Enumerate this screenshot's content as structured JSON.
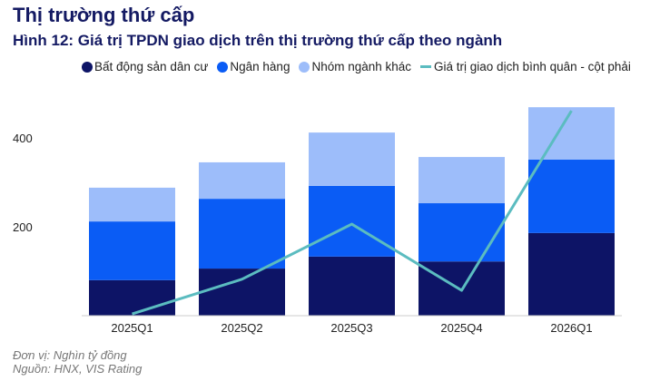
{
  "section_title": "Thị trường thứ cấp",
  "chart_data": {
    "type": "bar",
    "title": "Hình 12: Giá trị TPDN giao dịch trên thị trường thứ cấp theo ngành",
    "categories": [
      "2025Q1",
      "2025Q2",
      "2025Q3",
      "2025Q4",
      "2026Q1"
    ],
    "stacked": true,
    "series": [
      {
        "name": "Bất động sản dân cư",
        "color": "#0d1466",
        "values": [
          80,
          106,
          133,
          122,
          186
        ]
      },
      {
        "name": "Ngân hàng",
        "color": "#0a5cf5",
        "values": [
          132,
          157,
          159,
          131,
          165
        ]
      },
      {
        "name": "Nhóm ngành khác",
        "color": "#9dbdfa",
        "values": [
          76,
          82,
          120,
          104,
          118
        ]
      }
    ],
    "line_series": {
      "name": "Giá trị giao dịch bình quân - cột phải",
      "color": "#5bbcc0",
      "axis": "right (unlabeled)",
      "values": [
        4,
        82,
        206,
        57,
        461
      ]
    },
    "yticks": [
      200,
      400
    ],
    "ylim": [
      0,
      480
    ],
    "xlabel": "",
    "ylabel": "",
    "legend": "top",
    "grid": false
  },
  "footer": {
    "unit": "Đơn vị: Nghìn tỷ đồng",
    "source": "Nguồn: HNX, VIS Rating"
  }
}
